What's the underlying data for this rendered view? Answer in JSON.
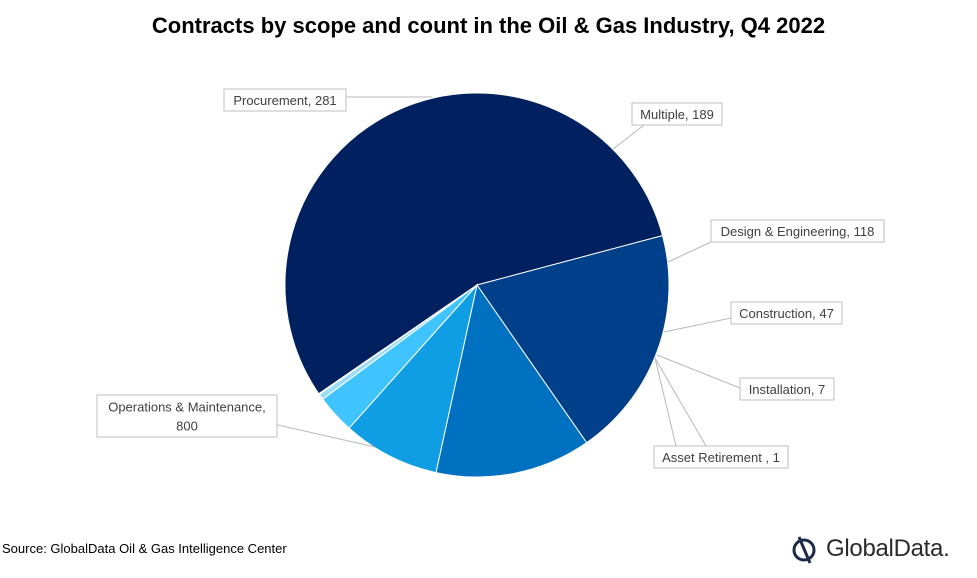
{
  "title": "Contracts by scope and count in the Oil & Gas Industry, Q4 2022",
  "source": "Source: GlobalData Oil & Gas Intelligence Center",
  "logo": "GlobalData.",
  "chart_data": {
    "type": "pie",
    "title": "Contracts by scope and count in the Oil & Gas Industry, Q4 2022",
    "legend": "none",
    "data_labels": "category and value, outside with leader lines",
    "slices": [
      {
        "label": "Operations & Maintenance",
        "value": 800,
        "display": [
          "Operations & Maintenance,",
          "800"
        ],
        "color": "#002060"
      },
      {
        "label": "Procurement",
        "value": 281,
        "display": [
          "Procurement, 281"
        ],
        "color": "#003F8A"
      },
      {
        "label": "Multiple",
        "value": 189,
        "display": [
          "Multiple, 189"
        ],
        "color": "#0070C0"
      },
      {
        "label": "Design & Engineering",
        "value": 118,
        "display": [
          "Design & Engineering, 118"
        ],
        "color": "#0F9DE3"
      },
      {
        "label": "Construction",
        "value": 47,
        "display": [
          "Construction, 47"
        ],
        "color": "#40C4FF"
      },
      {
        "label": "Installation",
        "value": 7,
        "display": [
          "Installation, 7"
        ],
        "color": "#9BDCF8"
      },
      {
        "label": "Asset Retirement",
        "value": 1,
        "display": [
          "Asset Retirement , 1"
        ],
        "color": "#D6EEFA"
      }
    ]
  }
}
